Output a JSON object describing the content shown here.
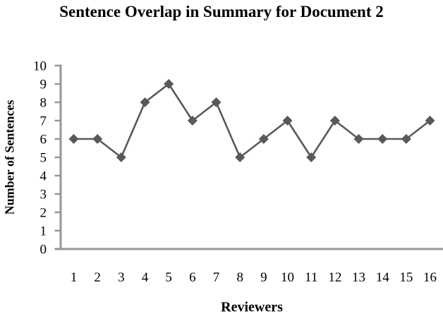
{
  "chart_data": {
    "type": "line",
    "title": "Sentence Overlap in Summary for Document 2",
    "xlabel": "Reviewers",
    "ylabel": "Number of Sentences",
    "categories": [
      "1",
      "2",
      "3",
      "4",
      "5",
      "6",
      "7",
      "8",
      "9",
      "10",
      "11",
      "12",
      "13",
      "14",
      "15",
      "16"
    ],
    "values": [
      6,
      6,
      5,
      8,
      9,
      7,
      8,
      5,
      6,
      7,
      5,
      7,
      6,
      6,
      6,
      7
    ],
    "ylim": [
      0,
      10
    ],
    "ytick_step": 1,
    "yticks": [
      0,
      1,
      2,
      3,
      4,
      5,
      6,
      7,
      8,
      9,
      10
    ],
    "grid": false,
    "legend": false,
    "marker": "diamond",
    "colors": {
      "series": "#595959",
      "axis": "#969696",
      "text": "#000000",
      "background": "#ffffff"
    }
  }
}
